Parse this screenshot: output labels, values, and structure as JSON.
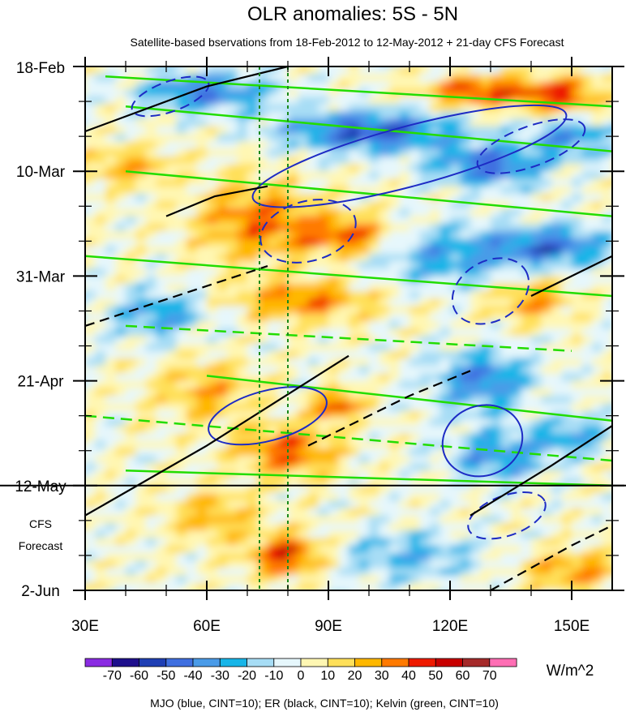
{
  "chart_data": {
    "type": "heatmap",
    "title": "OLR anomalies: 5S - 5N",
    "subtitle": "Satellite-based bservations from 18-Feb-2012 to 12-May-2012 + 21-day CFS Forecast",
    "xlabel": "",
    "ylabel": "",
    "x_ticks": [
      {
        "value": 30,
        "label": "30E"
      },
      {
        "value": 60,
        "label": "60E"
      },
      {
        "value": 90,
        "label": "90E"
      },
      {
        "value": 120,
        "label": "120E"
      },
      {
        "value": 150,
        "label": "150E"
      }
    ],
    "y_ticks": [
      {
        "day": 0,
        "label": "18-Feb"
      },
      {
        "day": 21,
        "label": "10-Mar"
      },
      {
        "day": 42,
        "label": "31-Mar"
      },
      {
        "day": 63,
        "label": "21-Apr"
      },
      {
        "day": 84,
        "label": "12-May"
      },
      {
        "day": 105,
        "label": "2-Jun"
      }
    ],
    "xlim": [
      30,
      160
    ],
    "ylim_days": [
      0,
      105
    ],
    "observation_end_day": 84,
    "forecast_label_lines": [
      "CFS",
      "Forecast"
    ],
    "reference_lon": [
      73,
      80
    ],
    "colorbar": {
      "units": "W/m^2",
      "levels": [
        -70,
        -60,
        -50,
        -40,
        -30,
        -20,
        -10,
        0,
        10,
        20,
        30,
        40,
        50,
        60,
        70
      ],
      "colors": [
        "#8a2be2",
        "#1e0f8c",
        "#1f3fb4",
        "#3f6fe0",
        "#4a9be8",
        "#17b5e8",
        "#a7ddf5",
        "#e6f7fc",
        "#fff7b3",
        "#ffe05a",
        "#ffb800",
        "#ff7a00",
        "#ee1a00",
        "#c80000",
        "#a52a2a",
        "#ff6eb4"
      ]
    },
    "caption": "MJO (blue, CINT=10); ER (black, CINT=10); Kelvin (green, CINT=10)",
    "line_colors": {
      "MJO": "#1d2bc4",
      "ER": "#000000",
      "Kelvin": "#22dd00",
      "ref": "#1a8a1a",
      "obs_end": "#000000"
    },
    "anomaly_features": [
      {
        "lon": 128,
        "day": 5,
        "v": 45,
        "rl": 14,
        "rd": 3
      },
      {
        "lon": 148,
        "day": 6,
        "v": 40,
        "rl": 10,
        "rd": 4
      },
      {
        "lon": 60,
        "day": 5,
        "v": -40,
        "rl": 16,
        "rd": 4
      },
      {
        "lon": 100,
        "day": 13,
        "v": -50,
        "rl": 22,
        "rd": 4
      },
      {
        "lon": 130,
        "day": 20,
        "v": -45,
        "rl": 14,
        "rd": 4
      },
      {
        "lon": 150,
        "day": 14,
        "v": -35,
        "rl": 10,
        "rd": 4
      },
      {
        "lon": 40,
        "day": 20,
        "v": 25,
        "rl": 12,
        "rd": 4
      },
      {
        "lon": 72,
        "day": 31,
        "v": 35,
        "rl": 15,
        "rd": 8
      },
      {
        "lon": 95,
        "day": 34,
        "v": 40,
        "rl": 12,
        "rd": 4
      },
      {
        "lon": 118,
        "day": 38,
        "v": -30,
        "rl": 18,
        "rd": 6
      },
      {
        "lon": 145,
        "day": 36,
        "v": -45,
        "rl": 14,
        "rd": 4
      },
      {
        "lon": 85,
        "day": 47,
        "v": 35,
        "rl": 18,
        "rd": 4
      },
      {
        "lon": 48,
        "day": 50,
        "v": -30,
        "rl": 12,
        "rd": 5
      },
      {
        "lon": 140,
        "day": 47,
        "v": 30,
        "rl": 10,
        "rd": 4
      },
      {
        "lon": 60,
        "day": 65,
        "v": 25,
        "rl": 12,
        "rd": 6
      },
      {
        "lon": 128,
        "day": 63,
        "v": -40,
        "rl": 12,
        "rd": 6
      },
      {
        "lon": 92,
        "day": 68,
        "v": 45,
        "rl": 6,
        "rd": 3
      },
      {
        "lon": 80,
        "day": 77,
        "v": 40,
        "rl": 12,
        "rd": 5
      },
      {
        "lon": 132,
        "day": 78,
        "v": -35,
        "rl": 12,
        "rd": 5
      },
      {
        "lon": 150,
        "day": 74,
        "v": -30,
        "rl": 8,
        "rd": 4
      },
      {
        "lon": 80,
        "day": 98,
        "v": 50,
        "rl": 9,
        "rd": 4
      },
      {
        "lon": 62,
        "day": 90,
        "v": 25,
        "rl": 12,
        "rd": 5
      },
      {
        "lon": 110,
        "day": 98,
        "v": -25,
        "rl": 18,
        "rd": 5
      },
      {
        "lon": 150,
        "day": 101,
        "v": 30,
        "rl": 12,
        "rd": 4
      }
    ],
    "mjo_contours": [
      {
        "lon": 51,
        "day": 6,
        "rl": 10,
        "rd": 3,
        "angle": -20,
        "dashed": true
      },
      {
        "lon": 85,
        "day": 33,
        "rl": 12,
        "rd": 6,
        "angle": -15,
        "dashed": true
      },
      {
        "lon": 130,
        "day": 45,
        "rl": 10,
        "rd": 6,
        "angle": -30,
        "dashed": true
      },
      {
        "lon": 134,
        "day": 90,
        "rl": 10,
        "rd": 4,
        "angle": -20,
        "dashed": true
      },
      {
        "lon": 110,
        "day": 18,
        "rl": 40,
        "rd": 6,
        "angle": -15,
        "dashed": false
      },
      {
        "lon": 75,
        "day": 70,
        "rl": 15,
        "rd": 5,
        "angle": -15,
        "dashed": false
      },
      {
        "lon": 128,
        "day": 75,
        "rl": 10,
        "rd": 7,
        "angle": -20,
        "dashed": false
      },
      {
        "lon": 140,
        "day": 16,
        "rl": 14,
        "rd": 4,
        "angle": -20,
        "dashed": true
      }
    ],
    "er_contours": [
      {
        "points": [
          [
            30,
            13
          ],
          [
            60,
            4
          ],
          [
            80,
            0
          ]
        ],
        "dashed": false
      },
      {
        "points": [
          [
            50,
            30
          ],
          [
            62,
            26
          ],
          [
            75,
            24
          ]
        ],
        "dashed": false
      },
      {
        "points": [
          [
            30,
            52
          ],
          [
            60,
            44
          ],
          [
            75,
            40
          ]
        ],
        "dashed": true
      },
      {
        "points": [
          [
            30,
            90
          ],
          [
            60,
            76
          ],
          [
            95,
            58
          ]
        ],
        "dashed": false
      },
      {
        "points": [
          [
            85,
            76
          ],
          [
            110,
            66
          ],
          [
            125,
            61
          ]
        ],
        "dashed": true
      },
      {
        "points": [
          [
            125,
            90
          ],
          [
            145,
            80
          ],
          [
            160,
            72
          ]
        ],
        "dashed": false
      },
      {
        "points": [
          [
            130,
            105
          ],
          [
            150,
            96
          ],
          [
            160,
            92
          ]
        ],
        "dashed": true
      },
      {
        "points": [
          [
            140,
            46
          ],
          [
            155,
            40
          ],
          [
            160,
            38
          ]
        ],
        "dashed": false
      }
    ],
    "kelvin_lines": [
      {
        "points": [
          [
            35,
            2
          ],
          [
            160,
            8
          ]
        ],
        "dashed": false
      },
      {
        "points": [
          [
            40,
            8
          ],
          [
            160,
            17
          ]
        ],
        "dashed": false
      },
      {
        "points": [
          [
            40,
            21
          ],
          [
            160,
            30
          ]
        ],
        "dashed": false
      },
      {
        "points": [
          [
            30,
            38
          ],
          [
            160,
            46
          ]
        ],
        "dashed": false
      },
      {
        "points": [
          [
            40,
            52
          ],
          [
            150,
            57
          ]
        ],
        "dashed": true
      },
      {
        "points": [
          [
            60,
            62
          ],
          [
            160,
            71
          ]
        ],
        "dashed": false
      },
      {
        "points": [
          [
            30,
            70
          ],
          [
            160,
            79
          ]
        ],
        "dashed": true
      },
      {
        "points": [
          [
            40,
            81
          ],
          [
            160,
            84
          ]
        ],
        "dashed": false
      }
    ]
  }
}
